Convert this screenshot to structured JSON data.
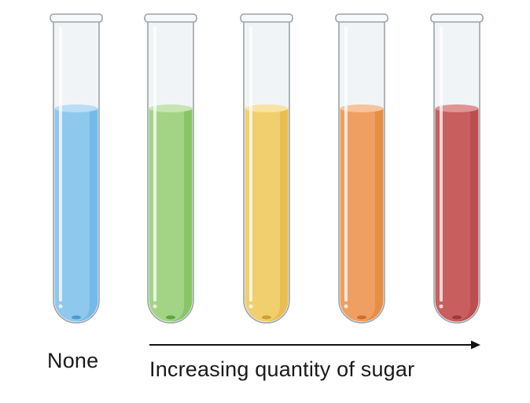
{
  "labels": {
    "none": "None",
    "increasing": "Increasing quantity of sugar"
  },
  "tubes": [
    {
      "color": "#8ec8ec",
      "rim": "#b9def5",
      "shade": "#5cb0e2",
      "tip": "#3d8fc2"
    },
    {
      "color": "#a3d486",
      "rim": "#c6e6b1",
      "shade": "#72b84d",
      "tip": "#4f9a33"
    },
    {
      "color": "#f1cf6e",
      "rim": "#f8e3a3",
      "shade": "#e0b040",
      "tip": "#c4952a"
    },
    {
      "color": "#ee9f61",
      "rim": "#f6c39a",
      "shade": "#e2802f",
      "tip": "#c2651d"
    },
    {
      "color": "#c85e5e",
      "rim": "#e09494",
      "shade": "#b04444",
      "tip": "#8e2f2f"
    }
  ],
  "arrow_color": "#111111",
  "glass_color": "#f1f4f6",
  "glass_outline": "#9ba3a9"
}
